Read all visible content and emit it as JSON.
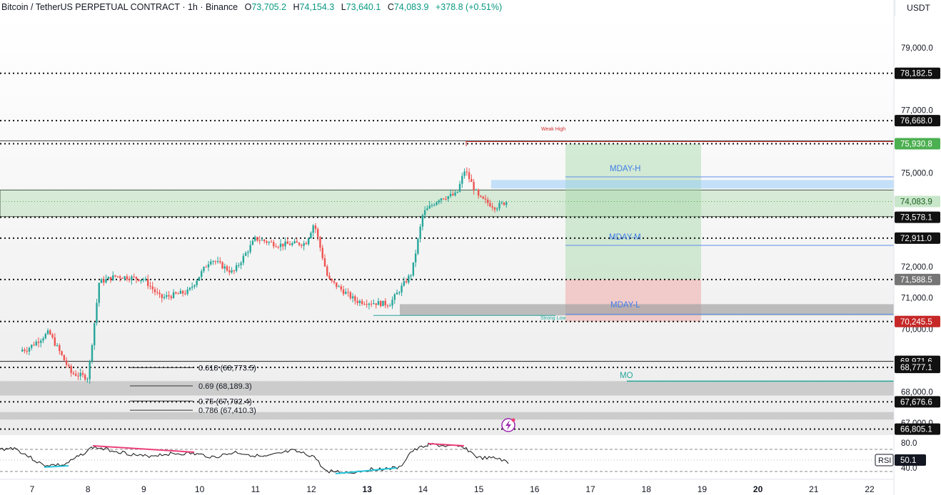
{
  "header": {
    "symbol": "Bitcoin / TetherUS PERPETUAL CONTRACT · 1h · Binance",
    "o_label": "O",
    "o": "73,705.2",
    "h_label": "H",
    "h": "74,154.3",
    "l_label": "L",
    "l": "73,640.1",
    "c_label": "C",
    "c": "74,083.9",
    "change": "+378.8 (+0.51%)"
  },
  "currency": "USDT",
  "chart_data": {
    "type": "candlestick",
    "y_ticks": [
      "79,000.0",
      "77,000.0",
      "75,000.0",
      "72,000.0",
      "71,000.0",
      "70,000.0",
      "68,000.0",
      "67,000.0"
    ],
    "x_ticks": [
      "7",
      "8",
      "9",
      "10",
      "11",
      "12",
      "13",
      "14",
      "15",
      "16",
      "17",
      "18",
      "19",
      "20",
      "21",
      "22"
    ],
    "price_levels": [
      {
        "label": "78,182.5",
        "value": 78182.5,
        "style": "dotted",
        "tag": "black"
      },
      {
        "label": "76,668.0",
        "value": 76668.0,
        "style": "dotted",
        "tag": "black"
      },
      {
        "label": "75,930.8",
        "value": 75930.8,
        "style": "dotted",
        "tag": "green"
      },
      {
        "label": "74,083.9",
        "value": 74083.9,
        "style": "current",
        "tag": "lightgreen"
      },
      {
        "label": "73,578.1",
        "value": 73578.1,
        "style": "dotted",
        "tag": "black"
      },
      {
        "label": "72,911.0",
        "value": 72911.0,
        "style": "dotted",
        "tag": "black"
      },
      {
        "label": "71,588.5",
        "value": 71588.5,
        "style": "dotted",
        "tag": "gray"
      },
      {
        "label": "70,245.5",
        "value": 70245.5,
        "style": "dotted",
        "tag": "red"
      },
      {
        "label": "68,971.6",
        "value": 68971.6,
        "style": "solid",
        "tag": "black"
      },
      {
        "label": "68,777.1",
        "value": 68777.1,
        "style": "dotted",
        "tag": "black"
      },
      {
        "label": "67,676.6",
        "value": 67676.6,
        "style": "dotted",
        "tag": "black"
      },
      {
        "label": "66,805.1",
        "value": 66805.1,
        "style": "dotted",
        "tag": "black"
      }
    ],
    "fib_labels": [
      "0.618 (68,773.5)",
      "0.69 (68,189.3)",
      "0.75 (67,702.4)",
      "0.786 (67,410.3)"
    ],
    "annotations": {
      "weak_high": "Weak High",
      "strong_low": "Strong Low",
      "mday_h": "MDAY-H",
      "mday_m": "MDAY-M",
      "mday_l": "MDAY-L",
      "mo": "MO"
    },
    "key_points": [
      {
        "x": "6.9",
        "price": 69350
      },
      {
        "x": "7.3",
        "price": 69900
      },
      {
        "x": "7.7",
        "price": 68600
      },
      {
        "x": "8.0",
        "price": 68450
      },
      {
        "x": "8.2",
        "price": 71500
      },
      {
        "x": "8.5",
        "price": 71700
      },
      {
        "x": "9.0",
        "price": 71600
      },
      {
        "x": "9.3",
        "price": 71000
      },
      {
        "x": "9.8",
        "price": 71200
      },
      {
        "x": "10.2",
        "price": 72250
      },
      {
        "x": "10.6",
        "price": 71800
      },
      {
        "x": "11.0",
        "price": 72900
      },
      {
        "x": "11.4",
        "price": 72700
      },
      {
        "x": "11.9",
        "price": 72750
      },
      {
        "x": "12.05",
        "price": 73400
      },
      {
        "x": "12.3",
        "price": 71600
      },
      {
        "x": "12.8",
        "price": 70900
      },
      {
        "x": "13.4",
        "price": 70800
      },
      {
        "x": "13.8",
        "price": 71800
      },
      {
        "x": "14.0",
        "price": 73700
      },
      {
        "x": "14.3",
        "price": 74200
      },
      {
        "x": "14.6",
        "price": 74300
      },
      {
        "x": "14.75",
        "price": 75100
      },
      {
        "x": "15.0",
        "price": 74200
      },
      {
        "x": "15.3",
        "price": 73900
      },
      {
        "x": "15.5",
        "price": 74084
      }
    ],
    "rsi": {
      "label": "RSI",
      "value": "50.1",
      "upper": "80.0",
      "lower": "40.0"
    }
  }
}
